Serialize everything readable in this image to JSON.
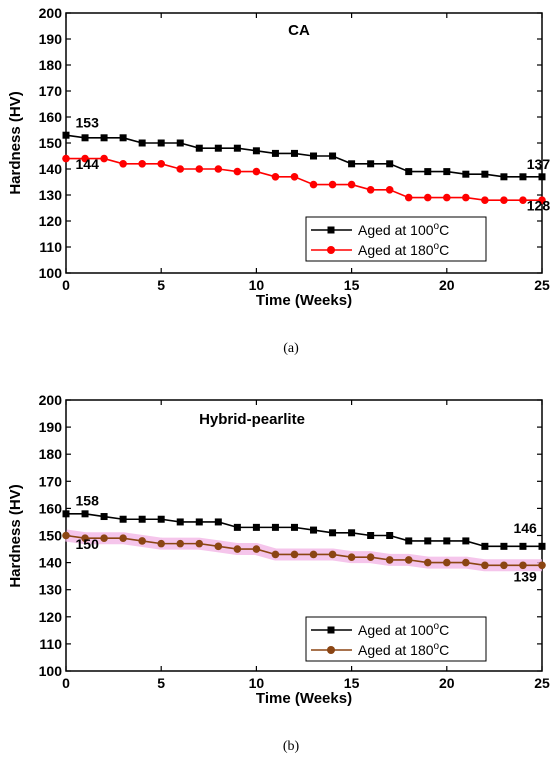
{
  "chart_data": [
    {
      "type": "line",
      "panel_label": "(a)",
      "title": "CA",
      "xlabel": "Time (Weeks)",
      "ylabel": "Hardness (HV)",
      "xlim": [
        0,
        25
      ],
      "ylim": [
        100,
        200
      ],
      "xticks": [
        0,
        5,
        10,
        15,
        20,
        25
      ],
      "yticks": [
        100,
        110,
        120,
        130,
        140,
        150,
        160,
        170,
        180,
        190,
        200
      ],
      "legend_position": "bottom-right",
      "series": [
        {
          "name": "Aged at 100°C",
          "name_main": "Aged at 100",
          "name_sup": "o",
          "name_tail": "C",
          "color": "#000000",
          "marker": "square",
          "x": [
            0,
            1,
            2,
            3,
            4,
            5,
            6,
            7,
            8,
            9,
            10,
            11,
            12,
            13,
            14,
            15,
            16,
            17,
            18,
            19,
            20,
            21,
            22,
            23,
            24,
            25
          ],
          "y": [
            153,
            152,
            152,
            152,
            150,
            150,
            150,
            148,
            148,
            148,
            147,
            146,
            146,
            145,
            145,
            142,
            142,
            142,
            139,
            139,
            139,
            138,
            138,
            137,
            137,
            137
          ]
        },
        {
          "name": "Aged at 180°C",
          "name_main": "Aged at 180",
          "name_sup": "o",
          "name_tail": "C",
          "color": "#ff0000",
          "marker": "circle",
          "x": [
            0,
            1,
            2,
            3,
            4,
            5,
            6,
            7,
            8,
            9,
            10,
            11,
            12,
            13,
            14,
            15,
            16,
            17,
            18,
            19,
            20,
            21,
            22,
            23,
            24,
            25
          ],
          "y": [
            144,
            144,
            144,
            142,
            142,
            142,
            140,
            140,
            140,
            139,
            139,
            137,
            137,
            134,
            134,
            134,
            132,
            132,
            129,
            129,
            129,
            129,
            128,
            128,
            128,
            128
          ]
        }
      ],
      "annotations": [
        {
          "text": "153",
          "x": 0.5,
          "y": 156
        },
        {
          "text": "144",
          "x": 0.5,
          "y": 140
        },
        {
          "text": "137",
          "x": 24.2,
          "y": 140
        },
        {
          "text": "128",
          "x": 24.2,
          "y": 124
        }
      ]
    },
    {
      "type": "line",
      "panel_label": "(b)",
      "title": "Hybrid-pearlite",
      "xlabel": "Time (Weeks)",
      "ylabel": "Hardness (HV)",
      "xlim": [
        0,
        25
      ],
      "ylim": [
        100,
        200
      ],
      "xticks": [
        0,
        5,
        10,
        15,
        20,
        25
      ],
      "yticks": [
        100,
        110,
        120,
        130,
        140,
        150,
        160,
        170,
        180,
        190,
        200
      ],
      "legend_position": "bottom-right",
      "series": [
        {
          "name": "Aged at 100°C",
          "name_main": "Aged at 100",
          "name_sup": "o",
          "name_tail": "C",
          "color": "#000000",
          "marker": "square",
          "x": [
            0,
            1,
            2,
            3,
            4,
            5,
            6,
            7,
            8,
            9,
            10,
            11,
            12,
            13,
            14,
            15,
            16,
            17,
            18,
            19,
            20,
            21,
            22,
            23,
            24,
            25
          ],
          "y": [
            158,
            158,
            157,
            156,
            156,
            156,
            155,
            155,
            155,
            153,
            153,
            153,
            153,
            152,
            151,
            151,
            150,
            150,
            148,
            148,
            148,
            148,
            146,
            146,
            146,
            146
          ]
        },
        {
          "name": "Aged at 180°C",
          "name_main": "Aged at 180",
          "name_sup": "o",
          "name_tail": "C",
          "color": "#8b4513",
          "marker": "circle",
          "x": [
            0,
            1,
            2,
            3,
            4,
            5,
            6,
            7,
            8,
            9,
            10,
            11,
            12,
            13,
            14,
            15,
            16,
            17,
            18,
            19,
            20,
            21,
            22,
            23,
            24,
            25
          ],
          "y": [
            150,
            149,
            149,
            149,
            148,
            147,
            147,
            147,
            146,
            145,
            145,
            143,
            143,
            143,
            143,
            142,
            142,
            141,
            141,
            140,
            140,
            140,
            139,
            139,
            139,
            139
          ]
        }
      ],
      "annotations": [
        {
          "text": "158",
          "x": 0.5,
          "y": 161
        },
        {
          "text": "150",
          "x": 0.5,
          "y": 145
        },
        {
          "text": "146",
          "x": 23.5,
          "y": 151
        },
        {
          "text": "139",
          "x": 23.5,
          "y": 133
        }
      ]
    }
  ]
}
